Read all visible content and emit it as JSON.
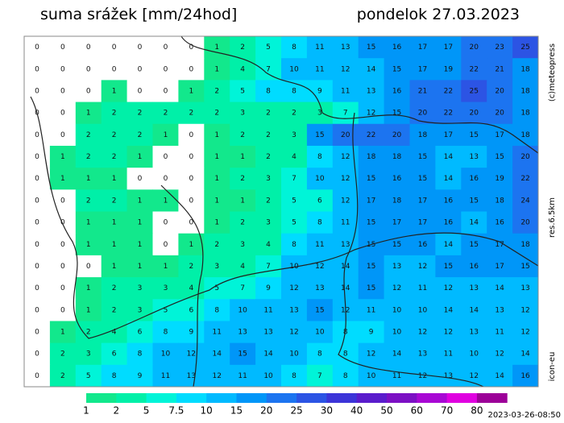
{
  "header": {
    "title": "suma srážek [mm/24hod]",
    "date": "pondelok 27.03.2023"
  },
  "side": {
    "copyright": "(c)meteopress",
    "resolution": "res.6.5km",
    "model": "icon-eu"
  },
  "footer": {
    "timestamp": "2023-03-26-08:50"
  },
  "legend": {
    "labels": [
      1,
      2,
      5,
      7.5,
      10,
      15,
      20,
      25,
      30,
      40,
      50,
      60,
      70,
      80
    ],
    "colors": [
      "#12e88c",
      "#00f0a8",
      "#00f4d8",
      "#00dcff",
      "#00baff",
      "#0096f8",
      "#1c74f0",
      "#2c54e4",
      "#3c34d8",
      "#5a1ccc",
      "#7c10c4",
      "#a808d4",
      "#e000e0",
      "#9c0098"
    ]
  },
  "grid": {
    "rows": [
      [
        0,
        0,
        0,
        0,
        0,
        0,
        0,
        1,
        2,
        5,
        8,
        11,
        13,
        15,
        16,
        17,
        17,
        20,
        23,
        25
      ],
      [
        0,
        0,
        0,
        0,
        0,
        0,
        0,
        1,
        4,
        7,
        10,
        11,
        12,
        14,
        15,
        17,
        19,
        22,
        21,
        18
      ],
      [
        0,
        0,
        0,
        1,
        0,
        0,
        1,
        2,
        5,
        8,
        8,
        9,
        11,
        13,
        16,
        21,
        22,
        25,
        20,
        18
      ],
      [
        0,
        0,
        1,
        2,
        2,
        2,
        2,
        2,
        3,
        2,
        2,
        3,
        7,
        12,
        15,
        20,
        22,
        20,
        20,
        18
      ],
      [
        0,
        0,
        2,
        2,
        2,
        1,
        0,
        1,
        2,
        2,
        3,
        15,
        20,
        22,
        20,
        18,
        17,
        15,
        17,
        18
      ],
      [
        0,
        1,
        2,
        2,
        1,
        0,
        0,
        1,
        1,
        2,
        4,
        8,
        12,
        18,
        18,
        15,
        14,
        13,
        15,
        20
      ],
      [
        0,
        1,
        1,
        1,
        0,
        0,
        0,
        1,
        2,
        3,
        7,
        10,
        12,
        15,
        16,
        15,
        14,
        16,
        19,
        22
      ],
      [
        0,
        0,
        2,
        2,
        1,
        1,
        0,
        1,
        1,
        2,
        5,
        6,
        12,
        17,
        18,
        17,
        16,
        15,
        18,
        24
      ],
      [
        0,
        0,
        1,
        1,
        1,
        0,
        0,
        1,
        2,
        3,
        5,
        8,
        11,
        15,
        17,
        17,
        16,
        14,
        16,
        20
      ],
      [
        0,
        0,
        1,
        1,
        1,
        0,
        1,
        2,
        3,
        4,
        8,
        11,
        13,
        15,
        15,
        16,
        14,
        15,
        17,
        18
      ],
      [
        0,
        0,
        0,
        1,
        1,
        1,
        2,
        3,
        4,
        7,
        10,
        12,
        14,
        15,
        13,
        12,
        15,
        16,
        17,
        15
      ],
      [
        0,
        0,
        1,
        2,
        3,
        3,
        4,
        5,
        7,
        9,
        12,
        13,
        14,
        15,
        12,
        11,
        12,
        13,
        14,
        13
      ],
      [
        0,
        0,
        1,
        2,
        3,
        5,
        6,
        8,
        10,
        11,
        13,
        15,
        12,
        11,
        10,
        10,
        14,
        14,
        13,
        12
      ],
      [
        0,
        1,
        2,
        4,
        6,
        8,
        9,
        11,
        13,
        13,
        12,
        10,
        8,
        9,
        10,
        12,
        12,
        13,
        11,
        12
      ],
      [
        0,
        2,
        3,
        6,
        8,
        10,
        12,
        14,
        15,
        14,
        10,
        8,
        8,
        12,
        14,
        13,
        11,
        10,
        12,
        14
      ],
      [
        0,
        2,
        5,
        8,
        9,
        11,
        13,
        12,
        11,
        10,
        8,
        7,
        8,
        10,
        11,
        12,
        13,
        12,
        14,
        16
      ]
    ]
  }
}
